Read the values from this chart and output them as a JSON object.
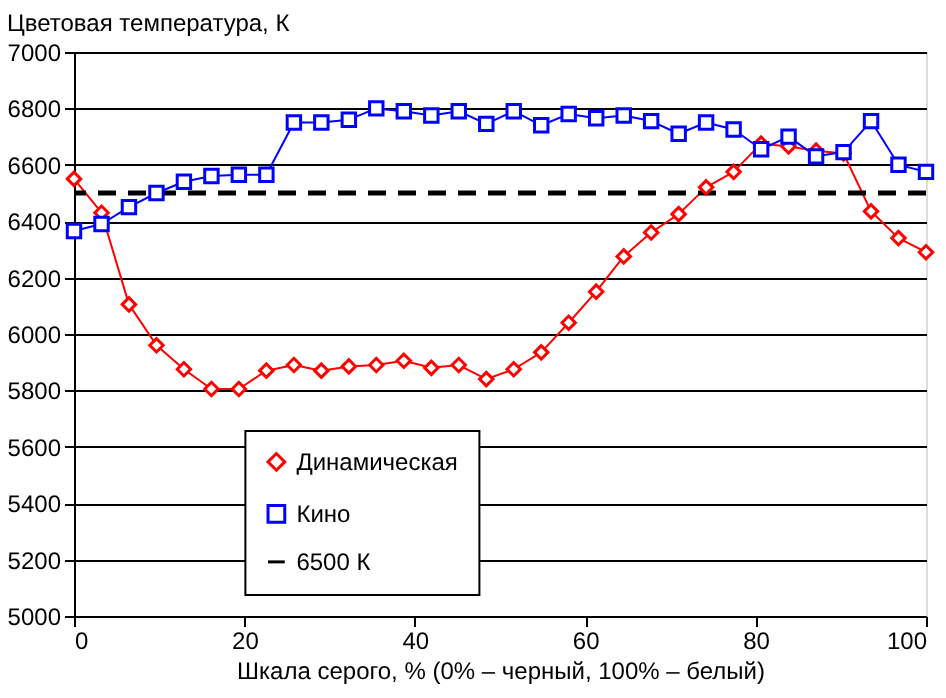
{
  "chart_data": {
    "type": "line",
    "ylabel": "Цветовая температура, К",
    "xlabel": "Шкала серого, % (0% – черный, 100% – белый)",
    "x": [
      0,
      3.23,
      6.45,
      9.68,
      12.9,
      16.13,
      19.35,
      22.58,
      25.81,
      29.03,
      32.26,
      35.48,
      38.71,
      41.94,
      45.16,
      48.39,
      51.61,
      54.84,
      58.06,
      61.29,
      64.52,
      67.74,
      70.97,
      74.19,
      77.42,
      80.65,
      83.87,
      87.1,
      90.32,
      93.55,
      96.77,
      100
    ],
    "series": [
      {
        "name": "Динамическая",
        "color": "#ff0000",
        "marker": "diamond",
        "values": [
          6550,
          6430,
          6105,
          5960,
          5875,
          5805,
          5805,
          5870,
          5890,
          5870,
          5885,
          5890,
          5905,
          5880,
          5890,
          5840,
          5875,
          5935,
          6040,
          6150,
          6275,
          6360,
          6425,
          6520,
          6575,
          6675,
          6665,
          6650,
          6640,
          6435,
          6340,
          6290
        ]
      },
      {
        "name": "Кино",
        "color": "#0000ff",
        "marker": "square",
        "values": [
          6365,
          6390,
          6450,
          6500,
          6540,
          6560,
          6565,
          6565,
          6750,
          6750,
          6760,
          6800,
          6790,
          6775,
          6790,
          6745,
          6790,
          6740,
          6780,
          6765,
          6775,
          6755,
          6710,
          6750,
          6725,
          6655,
          6700,
          6630,
          6645,
          6755,
          6600,
          6575
        ]
      }
    ],
    "ref_lines": [
      {
        "axis": "y",
        "value": 6500,
        "label": "6500 К",
        "color": "#000000",
        "line_style": "dashed"
      }
    ],
    "xlim": [
      0,
      100
    ],
    "xticks": [
      0,
      20,
      40,
      60,
      80,
      100
    ],
    "ylim": [
      5000,
      7000
    ],
    "yticks": [
      5000,
      5200,
      5400,
      5600,
      5800,
      6000,
      6200,
      6400,
      6600,
      6800,
      7000
    ],
    "grid": "y",
    "legend": "bottom",
    "line_style": "solid"
  }
}
